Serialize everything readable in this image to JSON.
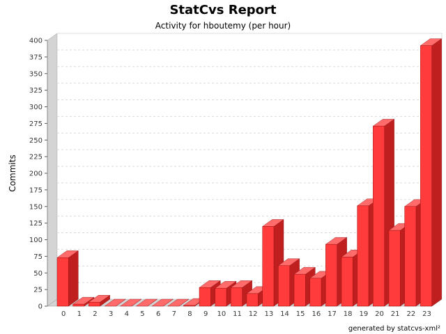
{
  "colors": {
    "bar_front": "#ff3b3b",
    "bar_side": "#c01f1f",
    "bar_top": "#ff6a6a",
    "gridline": "#d9d9d9",
    "wall": "#d4d4d4"
  },
  "chart_data": {
    "type": "bar",
    "title": "StatCvs Report",
    "subtitle": "Activity for hboutemy (per hour)",
    "xlabel": "",
    "ylabel": "Commits",
    "categories": [
      "0",
      "1",
      "2",
      "3",
      "4",
      "5",
      "6",
      "7",
      "8",
      "9",
      "10",
      "11",
      "12",
      "13",
      "14",
      "15",
      "16",
      "17",
      "18",
      "19",
      "20",
      "21",
      "22",
      "23"
    ],
    "values": [
      73,
      3,
      6,
      0,
      0,
      0,
      0,
      0,
      1,
      28,
      27,
      28,
      19,
      120,
      61,
      48,
      42,
      93,
      74,
      151,
      271,
      114,
      150,
      392
    ],
    "ylim": [
      0,
      400
    ],
    "yticks": [
      0,
      25,
      50,
      75,
      100,
      125,
      150,
      175,
      200,
      225,
      250,
      275,
      300,
      325,
      350,
      375,
      400
    ],
    "grid": true,
    "legend": "none",
    "footer": "generated by statcvs-xml²"
  }
}
